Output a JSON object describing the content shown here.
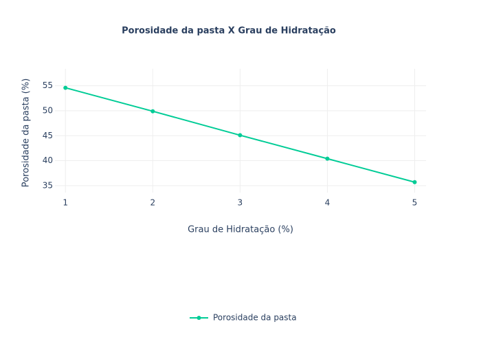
{
  "chart_data": {
    "type": "line",
    "title": "Porosidade da pasta X Grau de Hidratação",
    "x_label": "Grau de Hidratação (%)",
    "y_label": "Porosidade da pasta (%)",
    "x": [
      1,
      2,
      3,
      4,
      5
    ],
    "series": [
      {
        "name": "Porosidade da pasta",
        "color": "#00cc96",
        "values": [
          54.6,
          49.9,
          45.1,
          40.4,
          35.7
        ]
      }
    ],
    "xlim": [
      0.88,
      5.13
    ],
    "xticks": [
      1,
      2,
      3,
      4,
      5
    ],
    "ylim": [
      33.6,
      58.4
    ],
    "yticks": [
      35,
      40,
      45,
      50,
      55
    ],
    "grid": true,
    "legend": "bottom"
  }
}
